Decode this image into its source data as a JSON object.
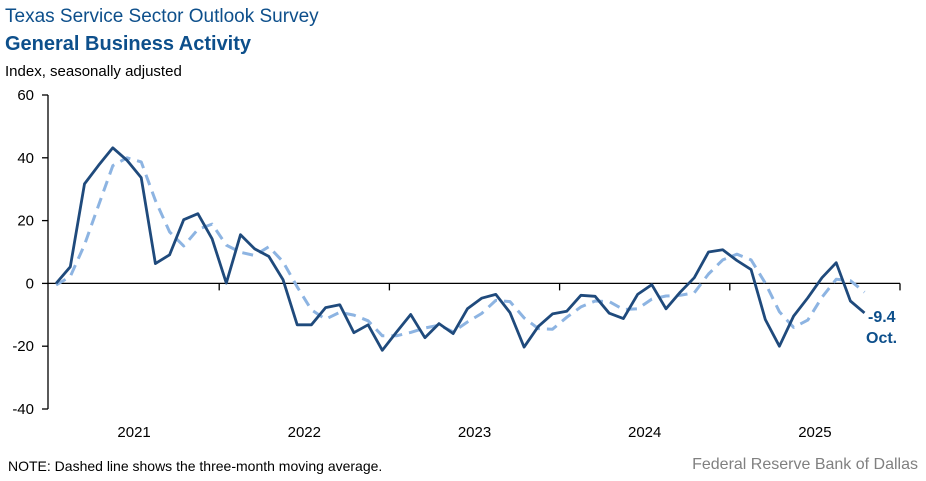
{
  "header": {
    "title": "Texas Service Sector Outlook Survey",
    "subtitle": "General Business Activity",
    "unit_label": "Index, seasonally adjusted"
  },
  "footer": {
    "note": "NOTE: Dashed line shows the three-month moving average.",
    "source": "Federal Reserve Bank of Dallas"
  },
  "chart_data": {
    "type": "line",
    "title": "General Business Activity",
    "ylabel": "Index, seasonally adjusted",
    "ylim": [
      -40,
      60
    ],
    "yticks": [
      -40,
      -20,
      0,
      20,
      40,
      60
    ],
    "xlim": [
      "2021-01",
      "2025-12"
    ],
    "xtick_labels": [
      "2021",
      "2022",
      "2023",
      "2024",
      "2025"
    ],
    "grid": false,
    "start_month": "2021-01",
    "end_month": "2025-10",
    "colors": {
      "index": "#1f4a7c",
      "moving_average": "#8db4e2"
    },
    "series": [
      {
        "key": "index",
        "style": "solid",
        "values": [
          0,
          5.3,
          31.7,
          37.6,
          43.2,
          39.2,
          33.7,
          6.3,
          9.1,
          20.3,
          22.2,
          14.2,
          0.1,
          15.5,
          11,
          8.6,
          1.2,
          -13.2,
          -13.2,
          -7.7,
          -6.8,
          -15.7,
          -13.2,
          -21.3,
          -15.5,
          -9.9,
          -17.3,
          -12.8,
          -16,
          -8.1,
          -4.7,
          -3.5,
          -9.3,
          -20.3,
          -13.7,
          -9.7,
          -8.9,
          -3.8,
          -4.1,
          -9.5,
          -11.2,
          -3.5,
          -0.4,
          -8.1,
          -2.8,
          1.8,
          10,
          10.7,
          7.3,
          4.4,
          -11.5,
          -20,
          -10.4,
          -4.6,
          1.8,
          6.6,
          -5.6,
          -9.4
        ]
      },
      {
        "key": "moving_average",
        "style": "dashed",
        "values": [
          -0.5,
          2.2,
          12.3,
          24.9,
          37.5,
          40,
          38.7,
          26.4,
          16.4,
          11.9,
          17.2,
          18.9,
          12.2,
          9.9,
          8.9,
          11.7,
          6.9,
          -1.1,
          -8.4,
          -11.4,
          -9.2,
          -10.1,
          -11.9,
          -16.7,
          -16.7,
          -15.6,
          -14.2,
          -13.3,
          -15.4,
          -12.3,
          -9.6,
          -5.4,
          -5.8,
          -11,
          -14.4,
          -14.6,
          -10.8,
          -7.5,
          -5.6,
          -5.8,
          -8.3,
          -8.1,
          -5,
          -4,
          -3.8,
          -3,
          3,
          7.5,
          9.3,
          7.5,
          0.1,
          -9,
          -14,
          -11.7,
          -4.4,
          1.3,
          0.9,
          -2.8
        ]
      }
    ],
    "annotation": {
      "value": "-9.4",
      "month": "Oct."
    }
  }
}
